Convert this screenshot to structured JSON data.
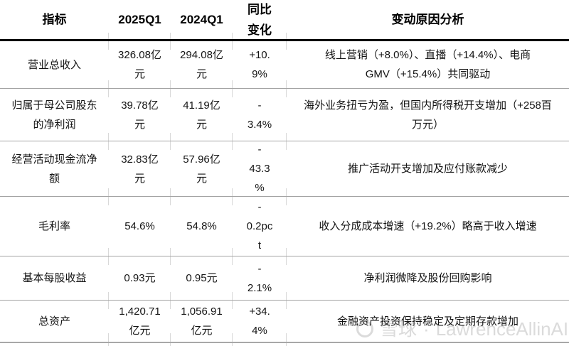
{
  "chart_data": {
    "type": "table",
    "columns": [
      "指标",
      "2025Q1",
      "2024Q1",
      "同比变化",
      "变动原因分析"
    ],
    "rows": [
      [
        "营业总收入",
        "326.08亿元",
        "294.08亿元",
        "+10.9%",
        "线上营销（+8.0%）、直播（+14.4%）、电商GMV（+15.4%）共同驱动"
      ],
      [
        "归属于母公司股东的净利润",
        "39.78亿元",
        "41.19亿元",
        "-3.4%",
        "海外业务扭亏为盈，但国内所得税开支增加（+258百万元）"
      ],
      [
        "经营活动现金流净额",
        "32.83亿元",
        "57.96亿元",
        "-43.3%",
        "推广活动开支增加及应付账款减少"
      ],
      [
        "毛利率",
        "54.6%",
        "54.8%",
        "-0.2pct",
        "收入分成成本增速（+19.2%）略高于收入增速"
      ],
      [
        "基本每股收益",
        "0.93元",
        "0.95元",
        "-2.1%",
        "净利润微降及股份回购影响"
      ],
      [
        "总资产",
        "1,420.71亿元",
        "1,056.91亿元",
        "+34.4%",
        "金融资产投资保持稳定及定期存款增加"
      ]
    ]
  },
  "table": {
    "headers": [
      "指标",
      "2025Q1",
      "2024Q1",
      "同比\n变化",
      "变动原因分析"
    ],
    "rows": [
      {
        "indicator": "营业总收入",
        "q1_2025": "326.08亿\n元",
        "q1_2024": "294.08亿\n元",
        "yoy": "+10.\n9%",
        "analysis": "线上营销（+8.0%）、直播（+14.4%）、电商\nGMV（+15.4%）共同驱动"
      },
      {
        "indicator": "归属于母公司股东\n的净利润",
        "q1_2025": "39.78亿\n元",
        "q1_2024": "41.19亿\n元",
        "yoy": "-\n3.4%",
        "analysis": "海外业务扭亏为盈，但国内所得税开支增加（+258百\n万元）"
      },
      {
        "indicator": "经营活动现金流净\n额",
        "q1_2025": "32.83亿\n元",
        "q1_2024": "57.96亿\n元",
        "yoy": "-\n43.3\n%",
        "analysis": "推广活动开支增加及应付账款减少"
      },
      {
        "indicator": "毛利率",
        "q1_2025": "54.6%",
        "q1_2024": "54.8%",
        "yoy": "-\n0.2pc\nt",
        "analysis": "收入分成成本增速（+19.2%）略高于收入增速"
      },
      {
        "indicator": "基本每股收益",
        "q1_2025": "0.93元",
        "q1_2024": "0.95元",
        "yoy": "-\n2.1%",
        "analysis": "净利润微降及股份回购影响"
      },
      {
        "indicator": "总资产",
        "q1_2025": "1,420.71\n亿元",
        "q1_2024": "1,056.91\n亿元",
        "yoy": "+34.\n4%",
        "analysis": "金融资产投资保持稳定及定期存款增加"
      }
    ]
  },
  "watermark": {
    "brand": "雪球",
    "separator": "·",
    "handle": "LawrenceAllinAI",
    "color": "#dbdbdb"
  },
  "colors": {
    "header_rule": "#000000",
    "row_rule": "#a3a3a3",
    "column_tick": "#d9d9d9",
    "body_text": "#141414"
  }
}
